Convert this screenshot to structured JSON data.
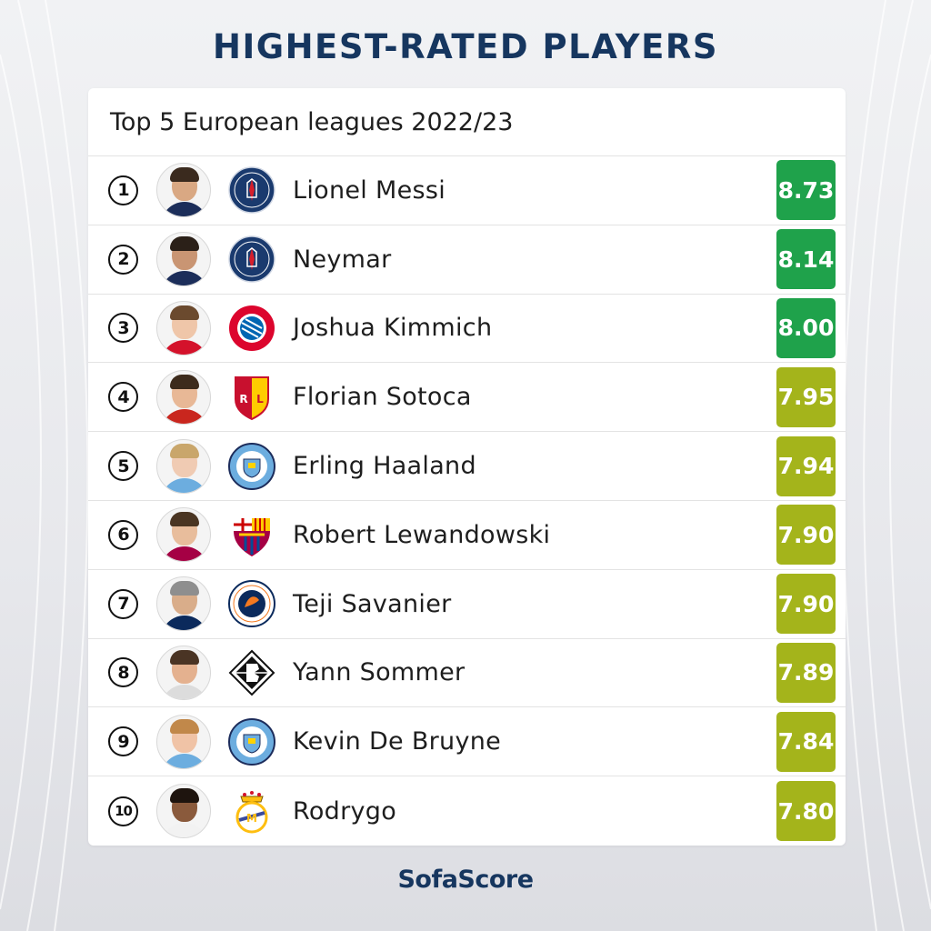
{
  "header": {
    "title": "HIGHEST-RATED PLAYERS"
  },
  "card": {
    "subtitle": "Top 5 European leagues 2022/23"
  },
  "players": [
    {
      "rank": "1",
      "name": "Lionel Messi",
      "club_icon": "psg-crest-icon",
      "rating": "8.73",
      "rating_color": "#1fa24b",
      "skin": "#d9a883",
      "hair": "#3a2a1e",
      "shirt": "#1c2e5a"
    },
    {
      "rank": "2",
      "name": "Neymar",
      "club_icon": "psg-crest-icon",
      "rating": "8.14",
      "rating_color": "#1fa24b",
      "skin": "#c99573",
      "hair": "#2b2018",
      "shirt": "#1c2e5a"
    },
    {
      "rank": "3",
      "name": "Joshua Kimmich",
      "club_icon": "bayern-crest-icon",
      "rating": "8.00",
      "rating_color": "#1fa24b",
      "skin": "#efc6a9",
      "hair": "#6b4a2e",
      "shirt": "#d4122b"
    },
    {
      "rank": "4",
      "name": "Florian Sotoca",
      "club_icon": "lens-crest-icon",
      "rating": "7.95",
      "rating_color": "#a4b41b",
      "skin": "#e8b896",
      "hair": "#3d2b1c",
      "shirt": "#c9261e"
    },
    {
      "rank": "5",
      "name": "Erling Haaland",
      "club_icon": "man-city-crest-icon",
      "rating": "7.94",
      "rating_color": "#a4b41b",
      "skin": "#f0cbb3",
      "hair": "#c9a66b",
      "shirt": "#6caddf"
    },
    {
      "rank": "6",
      "name": "Robert Lewandowski",
      "club_icon": "barcelona-crest-icon",
      "rating": "7.90",
      "rating_color": "#a4b41b",
      "skin": "#e8bd9c",
      "hair": "#4a3522",
      "shirt": "#a50044"
    },
    {
      "rank": "7",
      "name": "Teji Savanier",
      "club_icon": "montpellier-crest-icon",
      "rating": "7.90",
      "rating_color": "#a4b41b",
      "skin": "#d9ad8a",
      "hair": "#8e8e8e",
      "shirt": "#0b2a5c"
    },
    {
      "rank": "8",
      "name": "Yann Sommer",
      "club_icon": "gladbach-crest-icon",
      "rating": "7.89",
      "rating_color": "#a4b41b",
      "skin": "#e4b18f",
      "hair": "#4a3424",
      "shirt": "#dcdcdc"
    },
    {
      "rank": "9",
      "name": "Kevin De Bruyne",
      "club_icon": "man-city-crest-icon",
      "rating": "7.84",
      "rating_color": "#a4b41b",
      "skin": "#f0c3a6",
      "hair": "#c1884a",
      "shirt": "#6caddf"
    },
    {
      "rank": "10",
      "name": "Rodrygo",
      "club_icon": "real-madrid-crest-icon",
      "rating": "7.80",
      "rating_color": "#a4b41b",
      "skin": "#8a5a3c",
      "hair": "#1e140e",
      "shirt": "#f2f2f2"
    }
  ],
  "footer": {
    "brand": "SofaScore"
  }
}
